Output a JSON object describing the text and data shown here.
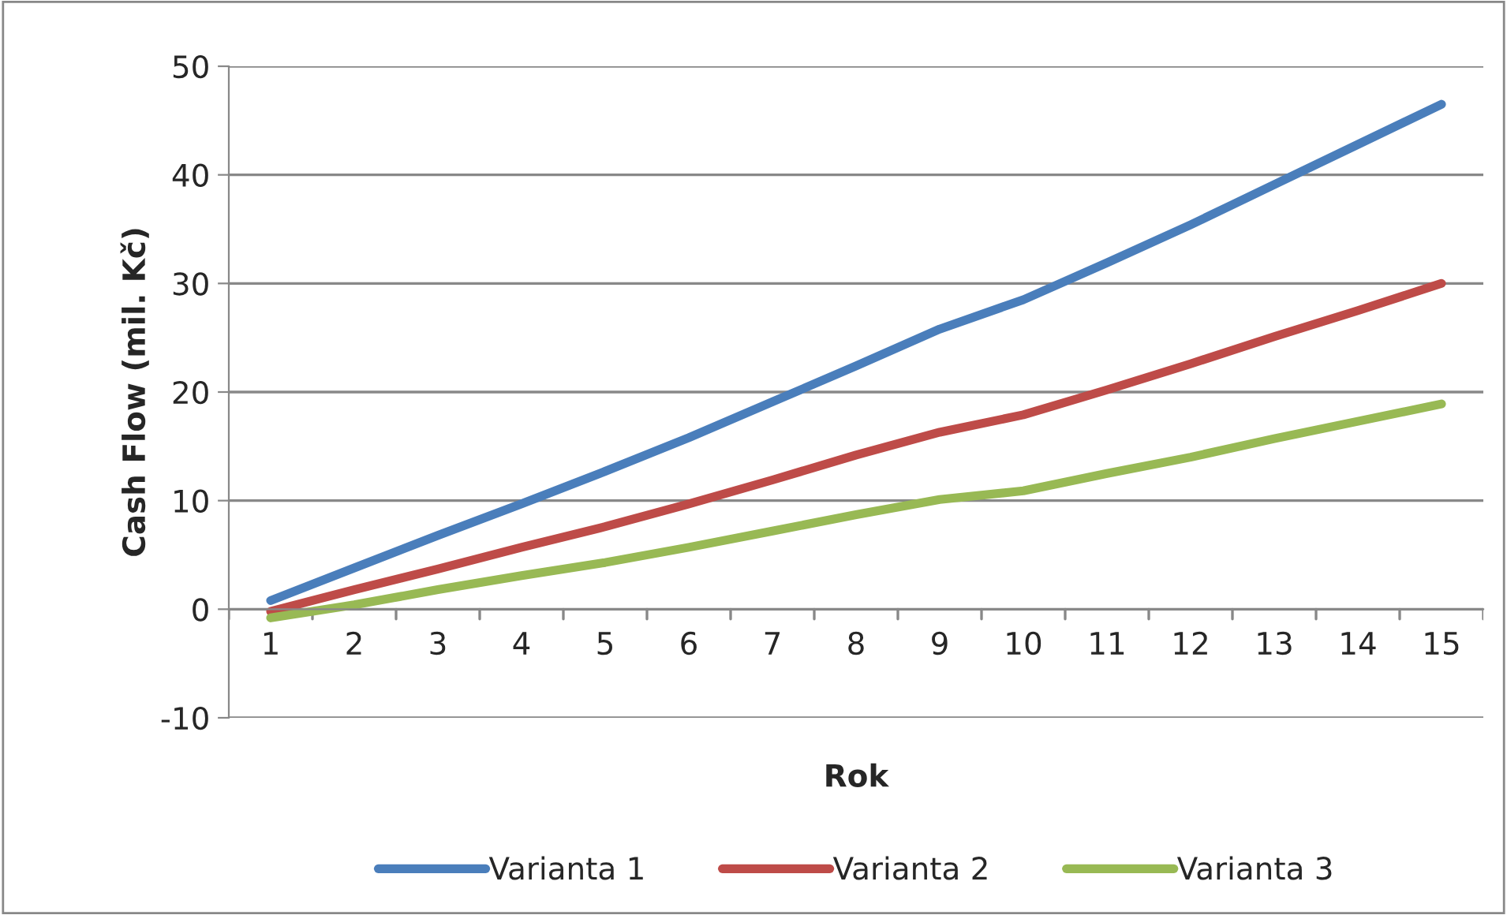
{
  "chart_data": {
    "type": "line",
    "xlabel": "Rok",
    "ylabel": "Cash Flow (mil. Kč)",
    "categories": [
      "1",
      "2",
      "3",
      "4",
      "5",
      "6",
      "7",
      "8",
      "9",
      "10",
      "11",
      "12",
      "13",
      "14",
      "15"
    ],
    "series": [
      {
        "name": "Varianta 1",
        "color": "#4a7ebb",
        "values": [
          0.8,
          3.8,
          6.8,
          9.7,
          12.7,
          15.8,
          19.1,
          22.4,
          25.8,
          28.5,
          31.9,
          35.4,
          39.1,
          42.8,
          46.5
        ]
      },
      {
        "name": "Varianta 2",
        "color": "#be4b48",
        "values": [
          -0.2,
          1.8,
          3.7,
          5.7,
          7.6,
          9.7,
          11.9,
          14.2,
          16.3,
          17.9,
          20.2,
          22.6,
          25.1,
          27.5,
          30.0
        ]
      },
      {
        "name": "Varianta 3",
        "color": "#98b954",
        "values": [
          -0.8,
          0.4,
          1.8,
          3.1,
          4.3,
          5.7,
          7.2,
          8.7,
          10.1,
          10.9,
          12.5,
          14.0,
          15.7,
          17.3,
          18.9
        ]
      }
    ],
    "ylim": [
      -10,
      50
    ],
    "yticks": [
      -10,
      0,
      10,
      20,
      30,
      40,
      50
    ],
    "grid": "y",
    "legend": "bottom",
    "marker": "none",
    "line_style": "solid"
  }
}
